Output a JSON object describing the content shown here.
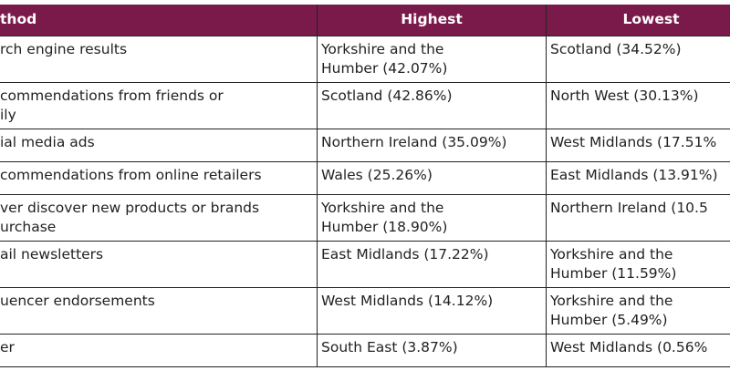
{
  "table": {
    "header": [
      "thod",
      "Highest",
      "Lowest"
    ],
    "rows": [
      [
        "rch engine results",
        "Yorkshire and the\nHumber (42.07%)",
        "Scotland (34.52%)"
      ],
      [
        "commendations from friends or\nily",
        "Scotland (42.86%)",
        "North West (30.13%)"
      ],
      [
        "ial media ads",
        "Northern Ireland (35.09%)",
        "West Midlands (17.51%"
      ],
      [
        "commendations from online retailers",
        "Wales (25.26%)",
        "East Midlands (13.91%)"
      ],
      [
        "ver discover new products or brands\nurchase",
        "Yorkshire and the\nHumber (18.90%)",
        "Northern Ireland (10.5"
      ],
      [
        "ail newsletters",
        "East Midlands (17.22%)",
        "Yorkshire and the\nHumber (11.59%)"
      ],
      [
        "uencer endorsements",
        "West Midlands (14.12%)",
        "Yorkshire and the\nHumber (5.49%)"
      ],
      [
        "er",
        "South East (3.87%)",
        "West Midlands (0.56%"
      ]
    ]
  }
}
